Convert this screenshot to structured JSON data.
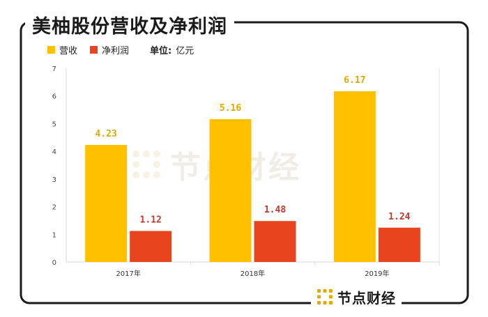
{
  "header": {
    "title": "美柚股份营收及净利润"
  },
  "legend": {
    "items": [
      {
        "label": "营收",
        "color": "#FFC000"
      },
      {
        "label": "净利润",
        "color": "#E8451E"
      }
    ],
    "unit_label": "单位:",
    "unit_value": "亿元"
  },
  "brand": {
    "name": "节点财经"
  },
  "watermark": {
    "text": "节点财经"
  },
  "chart_data": {
    "type": "bar",
    "title": "美柚股份营收及净利润",
    "categories": [
      "2017年",
      "2018年",
      "2019年"
    ],
    "series": [
      {
        "name": "营收",
        "color": "#FFC000",
        "label_color": "#E0A800",
        "values": [
          4.23,
          5.16,
          6.17
        ]
      },
      {
        "name": "净利润",
        "color": "#E8451E",
        "label_color": "#C0392B",
        "values": [
          1.12,
          1.48,
          1.24
        ]
      }
    ],
    "ylim": [
      0,
      7
    ],
    "yticks": [
      0,
      1,
      2,
      3,
      4,
      5,
      6,
      7
    ],
    "grid": false,
    "xlabel": "",
    "ylabel": "",
    "legend_position": "top-left"
  }
}
